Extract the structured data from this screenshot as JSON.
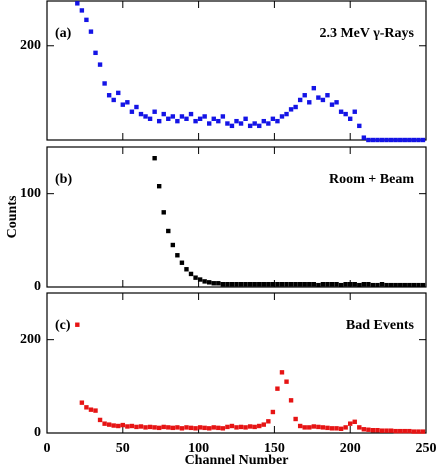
{
  "chart_data": [
    {
      "type": "scatter",
      "panel_label": "(a)",
      "annotation": "2.3 MeV γ-Rays",
      "color": "#1414e6",
      "x": [
        20,
        23,
        26,
        29,
        32,
        35,
        38,
        41,
        44,
        47,
        50,
        53,
        56,
        59,
        62,
        65,
        68,
        71,
        74,
        77,
        80,
        83,
        86,
        89,
        92,
        95,
        98,
        101,
        104,
        107,
        110,
        113,
        116,
        119,
        122,
        125,
        128,
        131,
        134,
        137,
        140,
        143,
        146,
        149,
        152,
        155,
        158,
        161,
        164,
        167,
        170,
        173,
        176,
        179,
        182,
        185,
        188,
        191,
        194,
        197,
        200,
        203,
        206,
        209,
        212,
        215,
        218,
        221,
        224,
        227,
        230,
        233,
        236,
        239,
        242,
        245,
        248
      ],
      "values": [
        290,
        275,
        255,
        230,
        185,
        160,
        120,
        95,
        85,
        100,
        75,
        80,
        60,
        70,
        55,
        50,
        45,
        60,
        40,
        55,
        45,
        50,
        40,
        50,
        45,
        55,
        40,
        45,
        50,
        35,
        45,
        40,
        50,
        35,
        30,
        40,
        35,
        45,
        30,
        35,
        30,
        40,
        35,
        45,
        40,
        50,
        55,
        65,
        70,
        85,
        95,
        80,
        110,
        90,
        85,
        95,
        75,
        80,
        60,
        55,
        45,
        60,
        30,
        5,
        0,
        0,
        0,
        0,
        0,
        0,
        0,
        0,
        0,
        0,
        0,
        0,
        0
      ],
      "xlim": [
        0,
        250
      ],
      "ylim": [
        0,
        295
      ],
      "yticks": [
        200
      ]
    },
    {
      "type": "scatter",
      "panel_label": "(b)",
      "annotation": "Room + Beam",
      "color": "#000000",
      "y_label": "Counts",
      "x": [
        20,
        23,
        26,
        29,
        32,
        35,
        38,
        41,
        44,
        47,
        50,
        53,
        56,
        59,
        62,
        65,
        68,
        71,
        74,
        77,
        80,
        83,
        86,
        89,
        92,
        95,
        98,
        101,
        104,
        107,
        110,
        113,
        116,
        119,
        122,
        125,
        128,
        131,
        134,
        137,
        140,
        143,
        146,
        149,
        152,
        155,
        158,
        161,
        164,
        167,
        170,
        173,
        176,
        179,
        182,
        185,
        188,
        191,
        194,
        197,
        200,
        203,
        206,
        209,
        212,
        215,
        218,
        221,
        224,
        227,
        230,
        233,
        236,
        239,
        242,
        245,
        248
      ],
      "values": [
        null,
        null,
        null,
        null,
        null,
        null,
        null,
        null,
        null,
        null,
        null,
        null,
        null,
        null,
        null,
        null,
        null,
        138,
        108,
        80,
        60,
        45,
        34,
        26,
        19,
        14,
        10,
        8,
        6,
        5,
        4,
        4,
        3,
        3,
        3,
        3,
        3,
        3,
        3,
        3,
        3,
        3,
        3,
        3,
        3,
        3,
        3,
        3,
        3,
        3,
        3,
        3,
        3,
        2,
        3,
        3,
        3,
        3,
        2,
        3,
        3,
        3,
        2,
        3,
        3,
        2,
        2,
        3,
        2,
        2,
        2,
        2,
        2,
        2,
        2,
        2,
        2
      ],
      "xlim": [
        0,
        250
      ],
      "ylim": [
        0,
        150
      ],
      "yticks": [
        0,
        100
      ]
    },
    {
      "type": "scatter",
      "panel_label": "(c)",
      "annotation": "Bad Events",
      "color": "#e61414",
      "x_label": "Channel Number",
      "x": [
        20,
        23,
        26,
        29,
        32,
        35,
        38,
        41,
        44,
        47,
        50,
        53,
        56,
        59,
        62,
        65,
        68,
        71,
        74,
        77,
        80,
        83,
        86,
        89,
        92,
        95,
        98,
        101,
        104,
        107,
        110,
        113,
        116,
        119,
        122,
        125,
        128,
        131,
        134,
        137,
        140,
        143,
        146,
        149,
        152,
        155,
        158,
        161,
        164,
        167,
        170,
        173,
        176,
        179,
        182,
        185,
        188,
        191,
        194,
        197,
        200,
        203,
        206,
        209,
        212,
        215,
        218,
        221,
        224,
        227,
        230,
        233,
        236,
        239,
        242,
        245,
        248
      ],
      "values": [
        232,
        65,
        55,
        50,
        48,
        28,
        20,
        18,
        16,
        15,
        17,
        14,
        15,
        13,
        14,
        12,
        13,
        12,
        11,
        13,
        12,
        11,
        12,
        10,
        12,
        11,
        10,
        12,
        11,
        10,
        12,
        11,
        10,
        13,
        15,
        12,
        13,
        12,
        14,
        13,
        15,
        18,
        25,
        45,
        95,
        130,
        110,
        70,
        30,
        15,
        12,
        12,
        14,
        13,
        12,
        11,
        10,
        10,
        9,
        12,
        20,
        24,
        12,
        8,
        7,
        6,
        6,
        5,
        5,
        5,
        4,
        4,
        4,
        4,
        3,
        3,
        3
      ],
      "xlim": [
        0,
        250
      ],
      "ylim": [
        0,
        300
      ],
      "yticks": [
        0,
        200
      ],
      "xticks": [
        0,
        50,
        100,
        150,
        200,
        250
      ]
    }
  ]
}
